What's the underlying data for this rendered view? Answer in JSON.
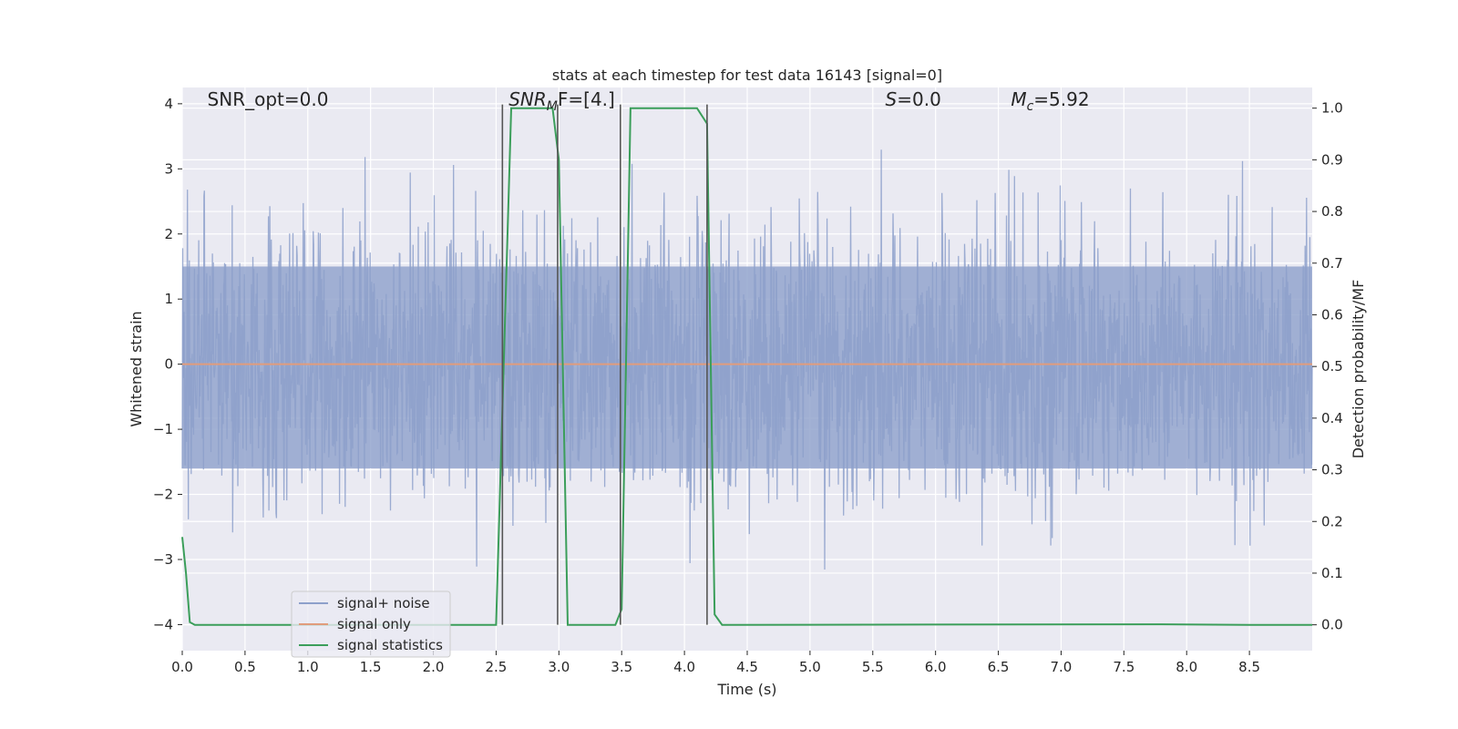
{
  "chart_data": {
    "type": "line",
    "title": "stats at each timestep for test data 16143 [signal=0]",
    "xlabel": "Time (s)",
    "ylabel": "Whitened strain",
    "y2label": "Detection probability/MF",
    "xlim": [
      0.0,
      9.0
    ],
    "ylim": [
      -4.4,
      4.25
    ],
    "y2lim": [
      -0.05,
      1.04
    ],
    "x_ticks": [
      0.0,
      0.5,
      1.0,
      1.5,
      2.0,
      2.5,
      3.0,
      3.5,
      4.0,
      4.5,
      5.0,
      5.5,
      6.0,
      6.5,
      7.0,
      7.5,
      8.0,
      8.5
    ],
    "x_tick_labels": [
      "0.0",
      "0.5",
      "1.0",
      "1.5",
      "2.0",
      "2.5",
      "3.0",
      "3.5",
      "4.0",
      "4.5",
      "5.0",
      "5.5",
      "6.0",
      "6.5",
      "7.0",
      "7.5",
      "8.0",
      "8.5"
    ],
    "y_ticks": [
      4,
      3,
      2,
      1,
      0,
      -1,
      -2,
      -3,
      -4
    ],
    "y_tick_labels": [
      "4",
      "3",
      "2",
      "1",
      "0",
      "−1",
      "−2",
      "−3",
      "−4"
    ],
    "y2_ticks": [
      1.0,
      0.9,
      0.8,
      0.7,
      0.6,
      0.5,
      0.4,
      0.3,
      0.2,
      0.1,
      0.0
    ],
    "y2_tick_labels": [
      "1.0",
      "0.9",
      "0.8",
      "0.7",
      "0.6",
      "0.5",
      "0.4",
      "0.3",
      "0.2",
      "0.1",
      "0.0"
    ],
    "grid": true,
    "legend_position": "bottom-left",
    "annotations": [
      {
        "label": "SNR_opt=0.0",
        "x": 0.2,
        "y": 4.0
      },
      {
        "label": "SNR",
        "sub": "M",
        "rest": "F=[4.]",
        "x": 2.6,
        "y": 4.0
      },
      {
        "label": "S",
        "rest": "=0.0",
        "x": 5.6,
        "y": 4.0
      },
      {
        "label": "M",
        "sub": "c",
        "rest": "=5.92",
        "x": 6.6,
        "y": 4.0
      }
    ],
    "markers": [
      2.55,
      2.99,
      3.49,
      4.18
    ],
    "series": [
      {
        "name": "signal+ noise",
        "color": "#8da0cb",
        "axis": "left",
        "style": "noise",
        "envelope_upper": 1.5,
        "envelope_lower": -1.6,
        "peak_max": 3.8,
        "peak_min": -4.0
      },
      {
        "name": "signal only",
        "color": "#e19c7c",
        "axis": "left",
        "x": [
          0.0,
          9.0
        ],
        "y": [
          0.0,
          0.0
        ]
      },
      {
        "name": "signal statistics",
        "color": "#3b9e5a",
        "axis": "right",
        "x": [
          0.0,
          0.03,
          0.06,
          0.1,
          2.5,
          2.56,
          2.62,
          2.7,
          2.95,
          3.0,
          3.07,
          3.45,
          3.5,
          3.57,
          4.1,
          4.18,
          4.24,
          4.3,
          7.8,
          8.5,
          9.0
        ],
        "y": [
          0.17,
          0.1,
          0.005,
          0.0,
          0.0,
          0.5,
          1.0,
          1.0,
          1.0,
          0.9,
          0.0,
          0.0,
          0.03,
          1.0,
          1.0,
          0.97,
          0.02,
          0.0,
          0.001,
          0.0,
          0.0
        ]
      }
    ]
  }
}
